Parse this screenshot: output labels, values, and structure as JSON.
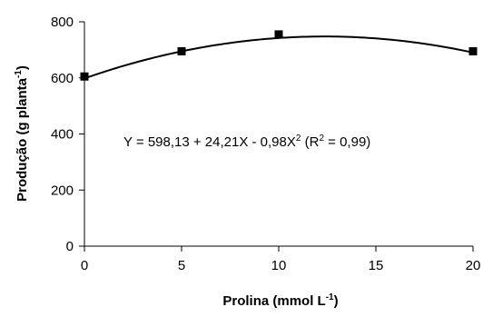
{
  "chart_data": {
    "type": "scatter",
    "title": "",
    "xlabel": {
      "main": "Prolina (mmol L",
      "sup": "-1",
      "tail": ")"
    },
    "ylabel": {
      "main": "Produção (g planta",
      "sup": "-1",
      "tail": ")"
    },
    "xlim": [
      0,
      20
    ],
    "ylim": [
      0,
      800
    ],
    "xticks": [
      0,
      5,
      10,
      15,
      20
    ],
    "yticks": [
      0,
      200,
      400,
      600,
      800
    ],
    "grid": false,
    "legend": "none",
    "series": [
      {
        "marker": "square",
        "color": "#000000",
        "x": [
          0,
          5,
          10,
          20
        ],
        "y": [
          605,
          695,
          755,
          695
        ]
      }
    ],
    "fit": {
      "type": "quadratic",
      "coefficients": [
        598.13,
        24.21,
        -0.98
      ],
      "color": "#000000"
    },
    "annotation": {
      "part1": "Y = 598,13 + 24,21X - 0,98X",
      "sup1": "2",
      "part2": " (R",
      "sup2": "2",
      "part3": " = 0,99)"
    }
  }
}
